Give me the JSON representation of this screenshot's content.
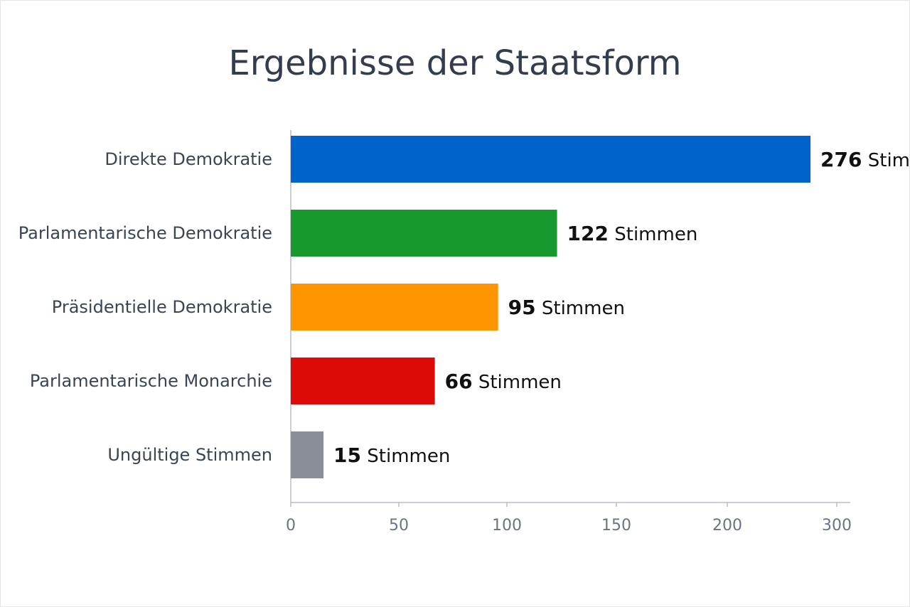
{
  "chart_data": {
    "type": "bar",
    "orientation": "horizontal",
    "title": "Ergebnisse der Staatsform",
    "categories": [
      "Direkte Demokratie",
      "Parlamentarische Demokratie",
      "Präsidentielle Demokratie",
      "Parlamentarische Monarchie",
      "Ungültige Stimmen"
    ],
    "values": [
      276,
      122,
      95,
      66,
      15
    ],
    "value_unit": "Stimmen",
    "colors": [
      "#0063cc",
      "#18992e",
      "#ff9500",
      "#dd0b08",
      "#8a8f96"
    ],
    "xlim": [
      0,
      300
    ],
    "xticks": [
      "0",
      "50",
      "100",
      "150",
      "200",
      "300"
    ],
    "grid": false,
    "legend": "none"
  }
}
